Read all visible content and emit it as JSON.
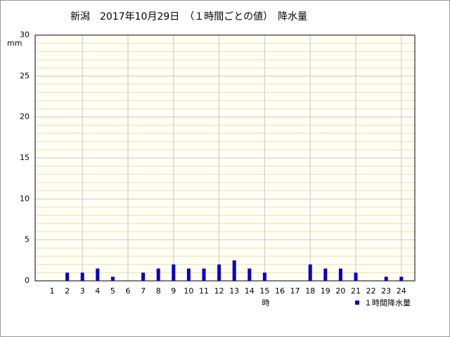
{
  "chart_data": {
    "type": "bar",
    "title": "新潟　2017年10月29日　（１時間ごとの値）　降水量",
    "y_label": "mm",
    "x_label": "時",
    "categories": [
      1,
      2,
      3,
      4,
      5,
      6,
      7,
      8,
      9,
      10,
      11,
      12,
      13,
      14,
      15,
      16,
      17,
      18,
      19,
      20,
      21,
      22,
      23,
      24
    ],
    "series": [
      {
        "name": "１時間降水量",
        "color": "#0000cc",
        "values": [
          0,
          1,
          1,
          1.5,
          0.5,
          0,
          1,
          1.5,
          2,
          1.5,
          1.5,
          2,
          2.5,
          1.5,
          1,
          0,
          0,
          2,
          1.5,
          1.5,
          1,
          0,
          0.5,
          0.5
        ]
      }
    ],
    "ylim": [
      0,
      30
    ],
    "yticks": [
      0,
      5,
      10,
      15,
      20,
      25,
      30
    ],
    "grid": true
  }
}
